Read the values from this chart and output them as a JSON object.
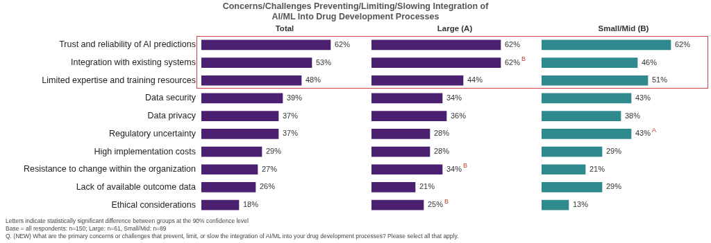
{
  "chart_data": [
    {
      "type": "bar",
      "orientation": "horizontal",
      "title": "Concerns/Challenges Preventing/Limiting/Slowing Integration of AI/ML Into Drug Development Processes",
      "subtitle": "Total",
      "categories": [
        "Trust and reliability of AI predictions",
        "Integration with existing systems",
        "Limited expertise and training resources",
        "Data security",
        "Data privacy",
        "Regulatory uncertainty",
        "High implementation costs",
        "Resistance to change within the organization",
        "Lack of available outcome data",
        "Ethical considerations"
      ],
      "series": [
        {
          "color": "#4b2070",
          "values": [
            62,
            53,
            48,
            39,
            37,
            37,
            29,
            27,
            26,
            18
          ],
          "value_labels": [
            "62%",
            "53%",
            "48%",
            "39%",
            "37%",
            "37%",
            "29%",
            "27%",
            "26%",
            "18%"
          ]
        }
      ],
      "tick_labels": "y",
      "grid": false,
      "legend": false,
      "annotations": [
        "Letters indicate statistically significant difference between groups at the 90% confidence level",
        "Base = all respondents: n=150; Large: n=61, Small/Mid: n=89",
        "Q. (NEW) What are the primary concerns or challenges that prevent, limit, or slow the integration of AI/ML into your drug development processes? Please select all that apply."
      ]
    },
    {
      "type": "bar",
      "orientation": "horizontal",
      "title": "Large (A)",
      "categories": [
        null,
        null,
        null,
        null,
        null,
        null,
        null,
        null,
        null,
        null
      ],
      "series": [
        {
          "color": "#4b2070",
          "values": [
            62,
            62,
            44,
            34,
            36,
            28,
            28,
            34,
            21,
            25
          ],
          "value_labels": [
            "62%",
            "62%$^{B}$",
            "44%",
            "34%",
            "36%",
            "28%",
            "28%",
            "34%$^{B}$",
            "21%",
            "25%$^{B}$"
          ]
        }
      ],
      "tick_labels": false,
      "grid": false,
      "legend": false
    },
    {
      "type": "bar",
      "orientation": "horizontal",
      "title": "Small/Mid (B)",
      "categories": [
        null,
        null,
        null,
        null,
        null,
        null,
        null,
        null,
        null,
        null
      ],
      "series": [
        {
          "color": "#2e8a8c",
          "values": [
            62,
            46,
            51,
            43,
            38,
            43,
            29,
            21,
            29,
            13
          ],
          "value_labels": [
            "62%",
            "46%",
            "51%",
            "43%",
            "38%",
            "43%$^{A}$",
            "29%",
            "21%",
            "29%",
            "13%"
          ]
        }
      ],
      "tick_labels": false,
      "grid": false,
      "legend": false
    }
  ]
}
